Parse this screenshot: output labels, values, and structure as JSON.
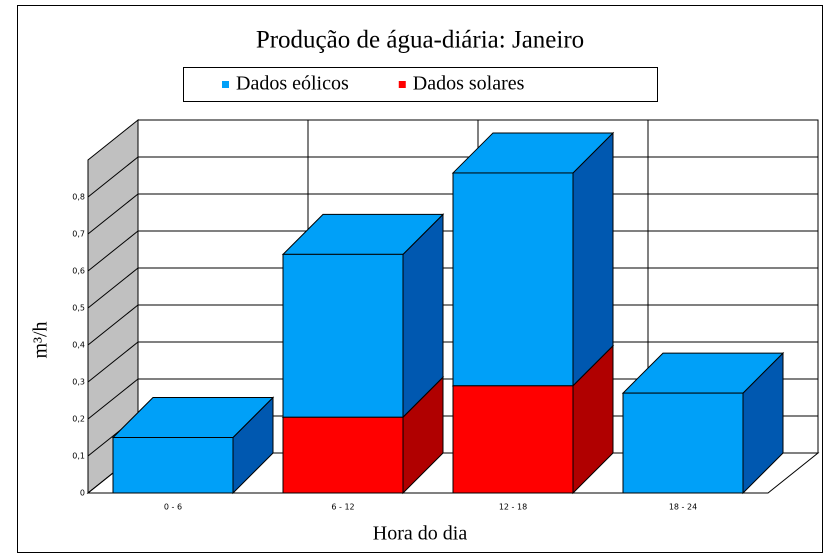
{
  "chart_data": {
    "type": "bar3d_stacked",
    "title": "Produção de água-diária: Janeiro",
    "x_label": "Hora do dia",
    "y_label": "m³/h",
    "categories": [
      "0 - 6",
      "6 - 12",
      "12 - 18",
      "18 - 24"
    ],
    "series": [
      {
        "name": "Dados eólicos",
        "color": "#00a0f8",
        "side_color": "#0058b0",
        "values": [
          0.15,
          0.44,
          0.575,
          0.27
        ]
      },
      {
        "name": "Dados solares",
        "color": "#ff0000",
        "side_color": "#b00000",
        "values": [
          0,
          0.205,
          0.29,
          0
        ]
      }
    ],
    "ylim": [
      0,
      0.9
    ],
    "yticks": [
      0,
      {
        "value": 0.1,
        "label": "0,1"
      },
      {
        "value": 0.2,
        "label": "0,2"
      },
      {
        "value": 0.3,
        "label": "0,3"
      },
      {
        "value": 0.4,
        "label": "0,4"
      },
      {
        "value": 0.5,
        "label": "0,5"
      },
      {
        "value": 0.6,
        "label": "0,6"
      },
      {
        "value": 0.7,
        "label": "0,7"
      },
      {
        "value": 0.8,
        "label": "0,8"
      }
    ],
    "grid": true,
    "legend": "top"
  }
}
